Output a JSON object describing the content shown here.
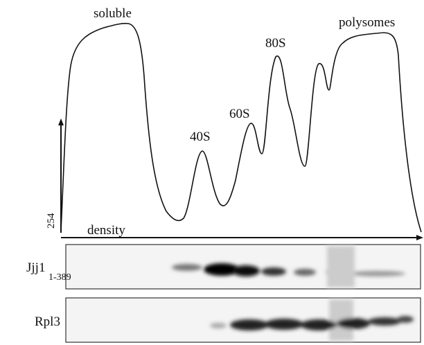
{
  "profile": {
    "peaks": [
      "soluble",
      "40S",
      "60S",
      "80S",
      "polysomes"
    ],
    "y_axis": "254",
    "x_axis": "density"
  },
  "blots": [
    {
      "label": "Jjj1",
      "subscript": "1-389"
    },
    {
      "label": "Rpl3"
    }
  ]
}
